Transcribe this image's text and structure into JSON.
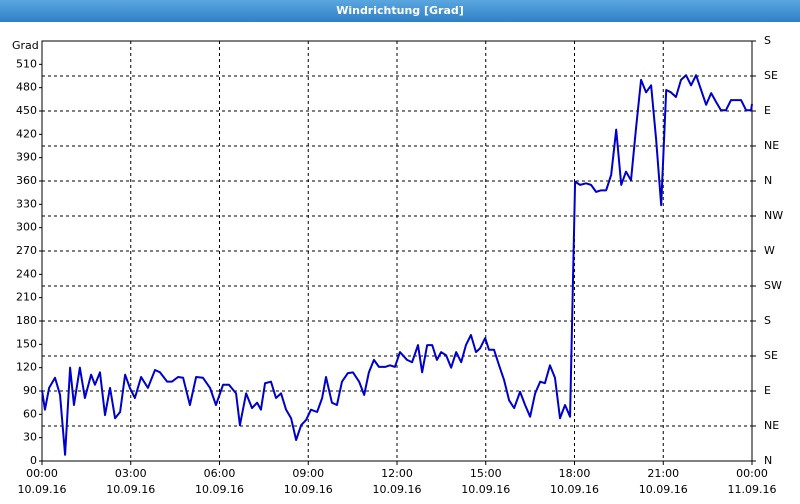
{
  "chart_data": {
    "type": "line",
    "title": "Windrichtung [Grad]",
    "y_label": "Grad",
    "x": [
      0,
      0.1,
      0.24,
      0.44,
      0.61,
      0.78,
      0.95,
      1.08,
      1.28,
      1.45,
      1.66,
      1.79,
      1.96,
      2.13,
      2.3,
      2.47,
      2.64,
      2.81,
      2.97,
      3.14,
      3.35,
      3.58,
      3.82,
      3.99,
      4.23,
      4.39,
      4.6,
      4.77,
      5.0,
      5.21,
      5.44,
      5.68,
      5.88,
      6.12,
      6.32,
      6.56,
      6.69,
      6.9,
      7.1,
      7.27,
      7.4,
      7.54,
      7.74,
      7.91,
      8.08,
      8.25,
      8.42,
      8.59,
      8.76,
      8.93,
      9.09,
      9.3,
      9.47,
      9.6,
      9.8,
      9.97,
      10.14,
      10.34,
      10.51,
      10.72,
      10.89,
      11.05,
      11.22,
      11.39,
      11.6,
      11.76,
      11.93,
      12.1,
      12.34,
      12.51,
      12.71,
      12.85,
      13.02,
      13.19,
      13.35,
      13.49,
      13.66,
      13.83,
      14.0,
      14.17,
      14.33,
      14.5,
      14.67,
      14.81,
      14.98,
      15.11,
      15.28,
      15.45,
      15.62,
      15.79,
      15.96,
      16.16,
      16.33,
      16.5,
      16.67,
      16.84,
      17.0,
      17.17,
      17.34,
      17.51,
      17.68,
      17.85,
      18.02,
      18.19,
      18.39,
      18.56,
      18.73,
      18.9,
      19.07,
      19.24,
      19.41,
      19.58,
      19.74,
      19.91,
      20.08,
      20.25,
      20.42,
      20.59,
      20.76,
      20.93,
      21.1,
      21.26,
      21.43,
      21.6,
      21.77,
      21.94,
      22.11,
      22.28,
      22.45,
      22.62,
      22.78,
      22.95,
      23.12,
      23.29,
      23.46,
      23.63,
      23.8,
      23.97,
      24.0
    ],
    "series": [
      {
        "name": "Windrichtung",
        "color": "#0000cc",
        "values": [
          91,
          66,
          94,
          107,
          85,
          8,
          120,
          72,
          120,
          81,
          111,
          98,
          114,
          59,
          94,
          55,
          63,
          111,
          94,
          81,
          108,
          94,
          117,
          114,
          102,
          102,
          108,
          107,
          72,
          108,
          107,
          94,
          72,
          98,
          98,
          87,
          46,
          87,
          68,
          75,
          66,
          100,
          102,
          81,
          87,
          66,
          55,
          27,
          46,
          53,
          66,
          63,
          81,
          108,
          75,
          72,
          102,
          113,
          114,
          102,
          85,
          114,
          130,
          121,
          121,
          123,
          121,
          140,
          130,
          127,
          149,
          114,
          149,
          149,
          130,
          140,
          136,
          120,
          140,
          127,
          149,
          162,
          140,
          145,
          158,
          143,
          143,
          123,
          104,
          78,
          68,
          89,
          72,
          57,
          87,
          102,
          100,
          123,
          107,
          55,
          72,
          57,
          359,
          355,
          357,
          355,
          346,
          348,
          348,
          368,
          426,
          355,
          372,
          361,
          428,
          490,
          474,
          483,
          413,
          329,
          477,
          474,
          468,
          490,
          496,
          483,
          496,
          477,
          458,
          473,
          462,
          451,
          451,
          464,
          464,
          464,
          451,
          451,
          459
        ]
      }
    ],
    "xlim": [
      0,
      24
    ],
    "xticks": [
      {
        "value": 0,
        "label": "00:00"
      },
      {
        "value": 3,
        "label": "03:00"
      },
      {
        "value": 6,
        "label": "06:00"
      },
      {
        "value": 9,
        "label": "09:00"
      },
      {
        "value": 12,
        "label": "12:00"
      },
      {
        "value": 15,
        "label": "15:00"
      },
      {
        "value": 18,
        "label": "18:00"
      },
      {
        "value": 21,
        "label": "21:00"
      },
      {
        "value": 24,
        "label": "00:00"
      }
    ],
    "xtick_dates": [
      "10.09.16",
      "10.09.16",
      "10.09.16",
      "10.09.16",
      "10.09.16",
      "10.09.16",
      "10.09.16",
      "10.09.16",
      "11.09.16"
    ],
    "ylim": [
      0,
      540
    ],
    "yticks": [
      0,
      30,
      60,
      90,
      120,
      150,
      180,
      210,
      240,
      270,
      300,
      330,
      360,
      390,
      420,
      450,
      480,
      510
    ],
    "y2lim": [
      0,
      540
    ],
    "y2ticks": [
      {
        "value": 0,
        "label": "N"
      },
      {
        "value": 45,
        "label": "NE"
      },
      {
        "value": 90,
        "label": "E"
      },
      {
        "value": 135,
        "label": "SE"
      },
      {
        "value": 180,
        "label": "S"
      },
      {
        "value": 225,
        "label": "SW"
      },
      {
        "value": 270,
        "label": "W"
      },
      {
        "value": 315,
        "label": "NW"
      },
      {
        "value": 360,
        "label": "N"
      },
      {
        "value": 405,
        "label": "NE"
      },
      {
        "value": 450,
        "label": "E"
      },
      {
        "value": 495,
        "label": "SE"
      },
      {
        "value": 540,
        "label": "S"
      }
    ],
    "grid": true
  }
}
